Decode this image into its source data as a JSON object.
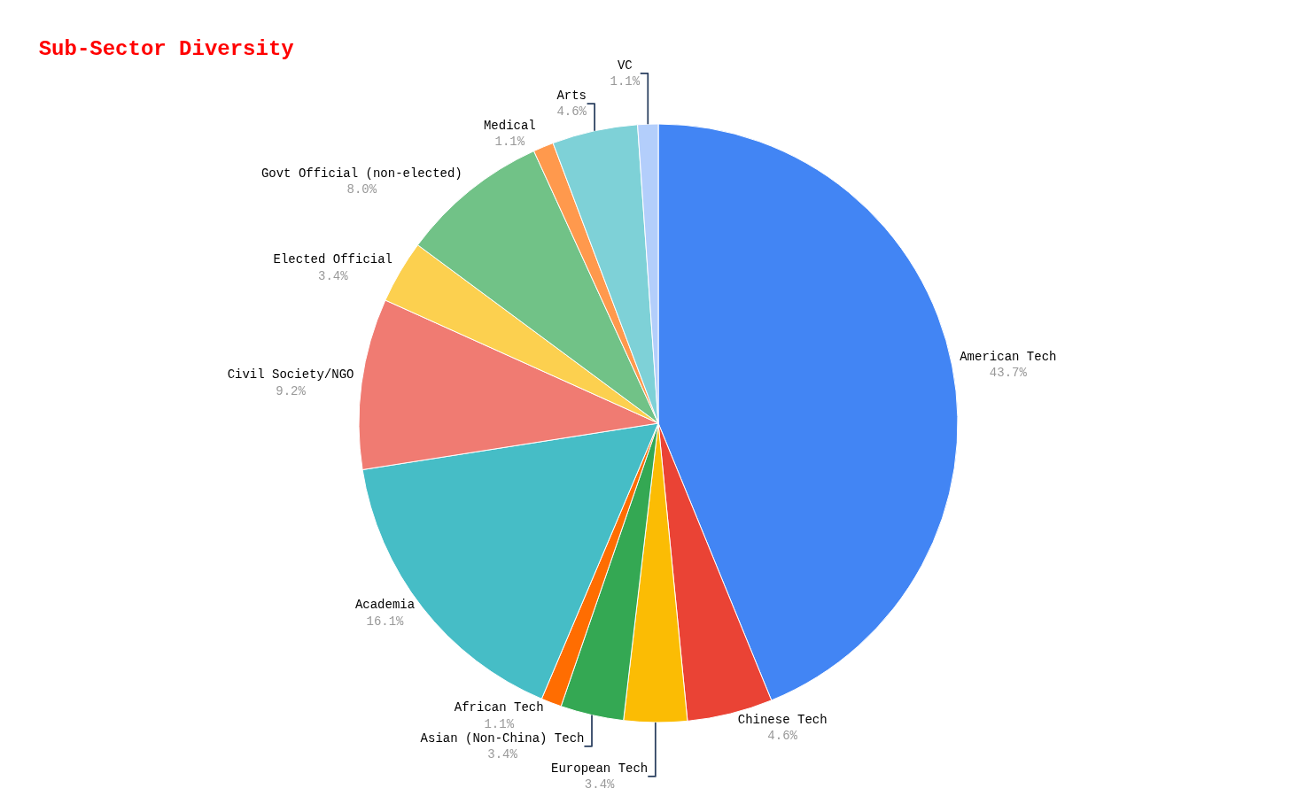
{
  "chart_data": {
    "type": "pie",
    "title": "Sub-Sector Diversity",
    "categories": [
      "American Tech",
      "Chinese Tech",
      "European Tech",
      "Asian (Non-China) Tech",
      "African Tech",
      "Academia",
      "Civil Society/NGO",
      "Elected Official",
      "Govt Official (non-elected)",
      "Medical",
      "Arts",
      "VC"
    ],
    "values": [
      43.7,
      4.6,
      3.4,
      3.4,
      1.1,
      16.1,
      9.2,
      3.4,
      8.0,
      1.1,
      4.6,
      1.1
    ],
    "value_labels": [
      "43.7%",
      "4.6%",
      "3.4%",
      "3.4%",
      "1.1%",
      "16.1%",
      "9.2%",
      "3.4%",
      "8.0%",
      "1.1%",
      "4.6%",
      "1.1%"
    ],
    "colors": [
      "#4285f4",
      "#ea4335",
      "#fbbc04",
      "#34a853",
      "#ff6d01",
      "#46bdc6",
      "#f07b72",
      "#fcd04f",
      "#71c287",
      "#ff994d",
      "#7ed1d7",
      "#b3cefb"
    ],
    "legend": false
  }
}
